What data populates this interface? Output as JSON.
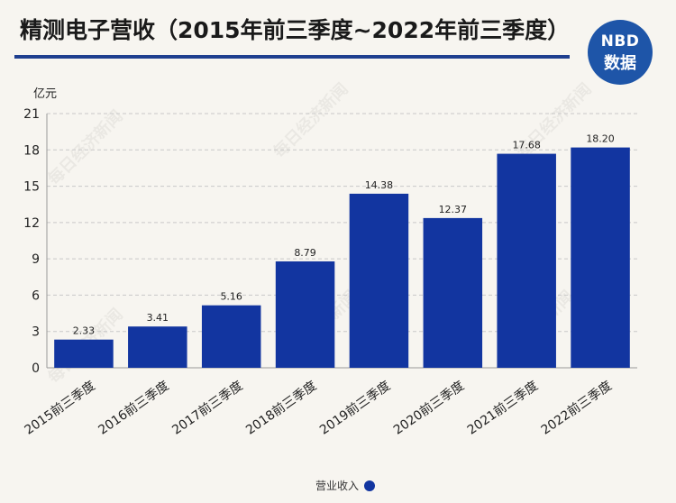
{
  "title": "精测电子营收（2015年前三季度~2022年前三季度）",
  "logo": {
    "top": "NBD",
    "bottom": "数据"
  },
  "watermark": "每日经济新闻",
  "unit_label": "亿元",
  "legend": {
    "label": "营业收入",
    "color": "#1235a0"
  },
  "chart_data": {
    "type": "bar",
    "title": "精测电子营收（2015年前三季度~2022年前三季度）",
    "ylabel": "亿元",
    "xlabel": "",
    "ylim": [
      0,
      21
    ],
    "yticks": [
      0,
      3,
      6,
      9,
      12,
      15,
      18,
      21
    ],
    "grid": true,
    "legend_position": "bottom",
    "categories": [
      "2015前三季度",
      "2016前三季度",
      "2017前三季度",
      "2018前三季度",
      "2019前三季度",
      "2020前三季度",
      "2021前三季度",
      "2022前三季度"
    ],
    "series": [
      {
        "name": "营业收入",
        "values": [
          2.33,
          3.41,
          5.16,
          8.79,
          14.38,
          12.37,
          17.68,
          18.2
        ],
        "labels": [
          "2.33",
          "3.41",
          "5.16",
          "8.79",
          "14.38",
          "12.37",
          "17.68",
          "18.20"
        ]
      }
    ],
    "bar_color": "#1235a0"
  }
}
